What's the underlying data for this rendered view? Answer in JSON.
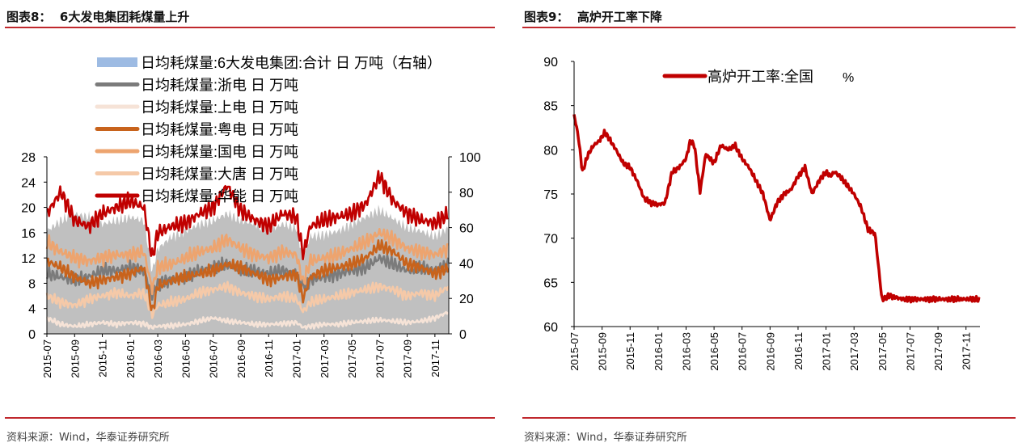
{
  "left_panel": {
    "title": "图表8：  6大发电集团耗煤量上升",
    "source": "资料来源：Wind，华泰证券研究所"
  },
  "right_panel": {
    "title": "图表9：  高炉开工率下降",
    "source": "资料来源：Wind，华泰证券研究所"
  },
  "colors": {
    "accent_red": "#c0282d",
    "total_area": "#c0c0c0",
    "legend_area": "#9dbbe3",
    "zhedian": "#7b7b7b",
    "shangdian": "#f6e3d7",
    "yuedian": "#c8631c",
    "guodian": "#eda46f",
    "datang": "#f5c9a8",
    "huaneng": "#c00000",
    "blast_line": "#c00000"
  },
  "chart_data": [
    {
      "type": "line",
      "title": "6大发电集团耗煤量上升",
      "x_range": [
        "2015-07",
        "2017-12"
      ],
      "xticks": [
        "2015-07",
        "2015-09",
        "2015-11",
        "2016-01",
        "2016-03",
        "2016-05",
        "2016-07",
        "2016-09",
        "2016-11",
        "2017-01",
        "2017-03",
        "2017-05",
        "2017-07",
        "2017-09",
        "2017-11"
      ],
      "left_axis": {
        "ylim": [
          0,
          28
        ],
        "ticks": [
          0,
          4,
          8,
          12,
          16,
          20,
          24,
          28
        ],
        "unit": "万吨"
      },
      "right_axis": {
        "ylim": [
          0,
          100
        ],
        "ticks": [
          0,
          20,
          40,
          60,
          80,
          100
        ]
      },
      "legend": [
        "日均耗煤量:6大发电集团:合计 日 万吨（右轴）",
        "日均耗煤量:浙电 日 万吨",
        "日均耗煤量:上电 日 万吨",
        "日均耗煤量:粤电 日 万吨",
        "日均耗煤量:国电 日 万吨",
        "日均耗煤量:大唐 日 万吨",
        "日均耗煤量:华能 日 万吨"
      ],
      "series": [
        {
          "name": "日均耗煤量:6大发电集团:合计",
          "kind": "area",
          "axis": "right",
          "x": [
            0,
            1,
            2,
            3,
            4,
            5,
            6,
            7,
            7.6,
            8,
            9,
            10,
            11,
            12,
            13,
            14,
            15,
            16,
            17,
            18,
            18.5,
            19,
            20,
            21,
            22,
            23,
            24,
            25,
            26,
            27,
            28,
            29
          ],
          "values": [
            58,
            64,
            68,
            66,
            62,
            64,
            66,
            64,
            35,
            48,
            55,
            58,
            62,
            64,
            68,
            64,
            62,
            58,
            62,
            60,
            42,
            55,
            56,
            58,
            62,
            66,
            70,
            65,
            60,
            58,
            55,
            60
          ]
        },
        {
          "name": "日均耗煤量:浙电",
          "kind": "line",
          "axis": "left",
          "x": [
            0,
            1,
            2,
            3,
            4,
            5,
            6,
            7,
            7.6,
            8,
            9,
            10,
            11,
            12,
            13,
            14,
            15,
            16,
            17,
            18,
            18.5,
            19,
            20,
            21,
            22,
            23,
            24,
            25,
            26,
            27,
            28,
            29
          ],
          "values": [
            9.5,
            9,
            8.5,
            9,
            10,
            10,
            10.5,
            10,
            6,
            8,
            8.5,
            9,
            10,
            10.5,
            11,
            10,
            10,
            9.5,
            10,
            9.5,
            7.5,
            8.5,
            9,
            9.5,
            10,
            10.5,
            12,
            11,
            10,
            10.5,
            10,
            11
          ]
        },
        {
          "name": "日均耗煤量:上电",
          "kind": "line",
          "axis": "left",
          "x": [
            0,
            1,
            2,
            3,
            4,
            5,
            6,
            7,
            7.6,
            8,
            9,
            10,
            11,
            12,
            13,
            14,
            15,
            16,
            17,
            18,
            18.5,
            19,
            20,
            21,
            22,
            23,
            24,
            25,
            26,
            27,
            28,
            29
          ],
          "values": [
            2.5,
            1.5,
            1.2,
            1.5,
            1.8,
            1.5,
            1.8,
            1.6,
            1.0,
            1.2,
            1.3,
            1.5,
            2,
            2.5,
            2,
            1.8,
            1.5,
            1.5,
            1.6,
            1.8,
            1,
            1.2,
            1.5,
            1.5,
            1.8,
            2,
            2.2,
            2,
            1.8,
            2,
            2.5,
            3.5
          ]
        },
        {
          "name": "日均耗煤量:粤电",
          "kind": "line",
          "axis": "left",
          "x": [
            0,
            1,
            2,
            3,
            4,
            5,
            6,
            7,
            7.6,
            8,
            9,
            10,
            11,
            12,
            13,
            14,
            15,
            16,
            17,
            18,
            18.5,
            19,
            20,
            21,
            22,
            23,
            24,
            25,
            26,
            27,
            28,
            29
          ],
          "values": [
            11.5,
            10.5,
            9,
            8,
            8.5,
            9,
            9.5,
            10.5,
            3.5,
            7.5,
            8.5,
            9,
            9.5,
            10,
            11,
            10.5,
            9.5,
            8.5,
            9,
            9.5,
            5.5,
            9,
            10,
            10.5,
            11,
            12,
            14,
            13,
            11,
            10.5,
            9.5,
            10.5
          ]
        },
        {
          "name": "日均耗煤量:国电",
          "kind": "line",
          "axis": "left",
          "x": [
            0,
            1,
            2,
            3,
            4,
            5,
            6,
            7,
            7.6,
            8,
            9,
            10,
            11,
            12,
            13,
            14,
            15,
            16,
            17,
            18,
            18.5,
            19,
            20,
            21,
            22,
            23,
            24,
            25,
            26,
            27,
            28,
            29
          ],
          "values": [
            14.5,
            13,
            12,
            11.5,
            12,
            12.5,
            12.5,
            13,
            7,
            10.5,
            11,
            12,
            13,
            13.5,
            15,
            13.5,
            12.5,
            12,
            13,
            12.5,
            8,
            11.5,
            12,
            12.5,
            13.5,
            14.5,
            16,
            15,
            13.5,
            13,
            12.5,
            13.5
          ]
        },
        {
          "name": "日均耗煤量:大唐",
          "kind": "line",
          "axis": "left",
          "x": [
            0,
            1,
            2,
            3,
            4,
            5,
            6,
            7,
            7.6,
            8,
            9,
            10,
            11,
            12,
            13,
            14,
            15,
            16,
            17,
            18,
            18.5,
            19,
            20,
            21,
            22,
            23,
            24,
            25,
            26,
            27,
            28,
            29
          ],
          "values": [
            6,
            5,
            4.5,
            5.5,
            6,
            6.5,
            6,
            6.5,
            3,
            4.5,
            5,
            5.5,
            6.5,
            7,
            7.5,
            6.5,
            6,
            5.5,
            6,
            5.5,
            3.5,
            5,
            5.5,
            6,
            6.5,
            7,
            7.5,
            7,
            6,
            6.5,
            6,
            7.5
          ]
        },
        {
          "name": "日均耗煤量:华能",
          "kind": "line",
          "axis": "left",
          "x": [
            0,
            1,
            2,
            3,
            4,
            5,
            6,
            7,
            7.6,
            8,
            9,
            10,
            11,
            12,
            13,
            14,
            15,
            16,
            17,
            18,
            18.5,
            19,
            20,
            21,
            22,
            23,
            24,
            25,
            26,
            27,
            28,
            29
          ],
          "values": [
            19,
            22.5,
            18,
            17,
            19,
            20,
            21,
            20,
            12,
            16,
            17,
            17.5,
            19,
            20,
            23.5,
            19.5,
            18,
            17,
            19,
            18.5,
            12.5,
            17,
            18,
            18.5,
            19,
            20.5,
            25,
            21,
            19,
            18,
            17.5,
            19
          ]
        }
      ]
    },
    {
      "type": "line",
      "title": "高炉开工率下降",
      "xticks": [
        "2015-07",
        "2015-09",
        "2015-11",
        "2016-01",
        "2016-03",
        "2016-05",
        "2016-07",
        "2016-09",
        "2016-11",
        "2017-01",
        "2017-03",
        "2017-05",
        "2017-07",
        "2017-09",
        "2017-11"
      ],
      "ylim": [
        60,
        90
      ],
      "yticks": [
        60,
        65,
        70,
        75,
        80,
        85,
        90
      ],
      "legend": [
        "高炉开工率:全国",
        "%"
      ],
      "series": [
        {
          "name": "高炉开工率:全国",
          "x": [
            0,
            0.3,
            0.6,
            1,
            1.4,
            1.8,
            2.2,
            2.6,
            3,
            3.5,
            4,
            4.5,
            5,
            5.5,
            6,
            6.5,
            7,
            7.5,
            8,
            8.3,
            8.6,
            9,
            9.4,
            10,
            10.5,
            11,
            11.5,
            12,
            12.5,
            13,
            13.5,
            14,
            14.5,
            15,
            15.5,
            16,
            16.5,
            17,
            17.5,
            18,
            18.3,
            18.6,
            19,
            19.5,
            20,
            20.5,
            21,
            21.5,
            22,
            22.5,
            23,
            23.5,
            24,
            24.5,
            25,
            25.5,
            26,
            26.5,
            27,
            27.3,
            27.6,
            28,
            28.2,
            28.4,
            28.6,
            29
          ],
          "values": [
            84,
            81.5,
            77.5,
            79.5,
            80.5,
            81,
            82,
            81,
            80,
            78.5,
            78,
            76.5,
            74.5,
            74,
            73.8,
            74,
            77.5,
            78,
            79,
            81,
            80.5,
            75.2,
            79.5,
            78.5,
            80.5,
            80,
            80.5,
            79,
            78,
            76.5,
            75,
            72,
            74,
            75,
            75.5,
            77,
            78,
            75,
            76.5,
            77.5,
            77,
            77.5,
            77,
            76,
            75,
            73.5,
            71,
            70.5,
            63,
            63.5,
            63.3,
            63.1,
            63.1,
            63.1,
            63.1,
            63.1,
            63.1,
            63.1,
            63.1,
            63.1,
            63.1,
            63.1,
            63.1,
            63.1,
            63.1,
            63
          ]
        }
      ]
    }
  ]
}
